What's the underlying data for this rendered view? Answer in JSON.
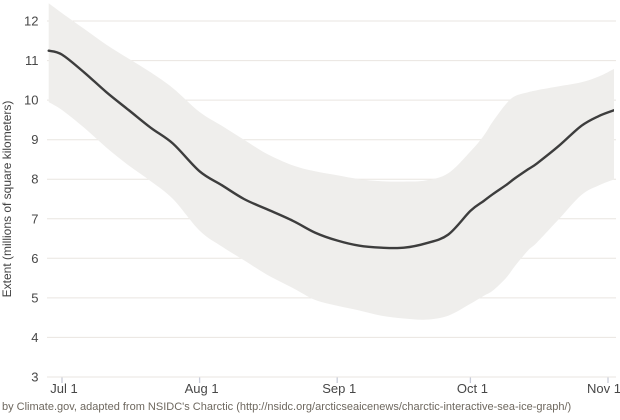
{
  "caption": "by Climate.gov, adapted from NSIDC's Charctic (http://nsidc.org/arcticseaicenews/charctic-interactive-sea-ice-graph/)",
  "colors": {
    "median_line": "#3d3d3d",
    "band": "#efeeec",
    "gridline": "#e9e5e0",
    "tick_label": "#474747",
    "axis_title": "#424242",
    "month_tick": "#c8ccd9",
    "caption_text": "#6e685f",
    "background": "#ffffff"
  },
  "chart_data": {
    "type": "line",
    "title": "",
    "xlabel": "",
    "ylabel": "Extent (millions of square kilometers)",
    "x_unit": "days since Jul 1",
    "ylim": [
      3,
      12.46
    ],
    "grid": "horizontal",
    "legend": "none",
    "y_ticks": [
      3,
      4,
      5,
      6,
      7,
      8,
      9,
      10,
      11,
      12
    ],
    "x_ticks": [
      {
        "label": "Jul 1",
        "day": 0
      },
      {
        "label": "Aug 1",
        "day": 31
      },
      {
        "label": "Sep 1",
        "day": 62
      },
      {
        "label": "Oct 1",
        "day": 92
      },
      {
        "label": "Nov 1",
        "day": 123
      }
    ],
    "x": [
      -3,
      0,
      5,
      10,
      15,
      20,
      25,
      31,
      36,
      41,
      46,
      52,
      57,
      62,
      67,
      72,
      77,
      82,
      87,
      92,
      95,
      97,
      100,
      102,
      105,
      107,
      112,
      117,
      121,
      124.5
    ],
    "series": [
      {
        "name": "median sea ice extent",
        "role": "median",
        "values": [
          11.25,
          11.15,
          10.7,
          10.2,
          9.75,
          9.3,
          8.9,
          8.2,
          7.85,
          7.5,
          7.25,
          6.95,
          6.65,
          6.45,
          6.32,
          6.27,
          6.27,
          6.38,
          6.6,
          7.2,
          7.45,
          7.62,
          7.85,
          8.02,
          8.25,
          8.4,
          8.85,
          9.35,
          9.6,
          9.75
        ]
      },
      {
        "name": "band lower bound",
        "role": "band_low",
        "values": [
          9.95,
          9.75,
          9.3,
          8.8,
          8.35,
          7.95,
          7.5,
          6.7,
          6.3,
          5.95,
          5.6,
          5.25,
          4.95,
          4.8,
          4.68,
          4.55,
          4.48,
          4.45,
          4.55,
          4.85,
          5.05,
          5.18,
          5.5,
          5.8,
          6.2,
          6.4,
          7.0,
          7.6,
          7.85,
          8.0
        ]
      },
      {
        "name": "band upper bound",
        "role": "band_high",
        "values": [
          12.45,
          12.2,
          11.8,
          11.4,
          11.05,
          10.7,
          10.3,
          9.7,
          9.35,
          9.0,
          8.65,
          8.35,
          8.2,
          8.1,
          8.0,
          7.95,
          7.94,
          7.97,
          8.15,
          8.7,
          9.1,
          9.45,
          9.9,
          10.1,
          10.2,
          10.25,
          10.35,
          10.45,
          10.6,
          10.8
        ]
      }
    ]
  }
}
